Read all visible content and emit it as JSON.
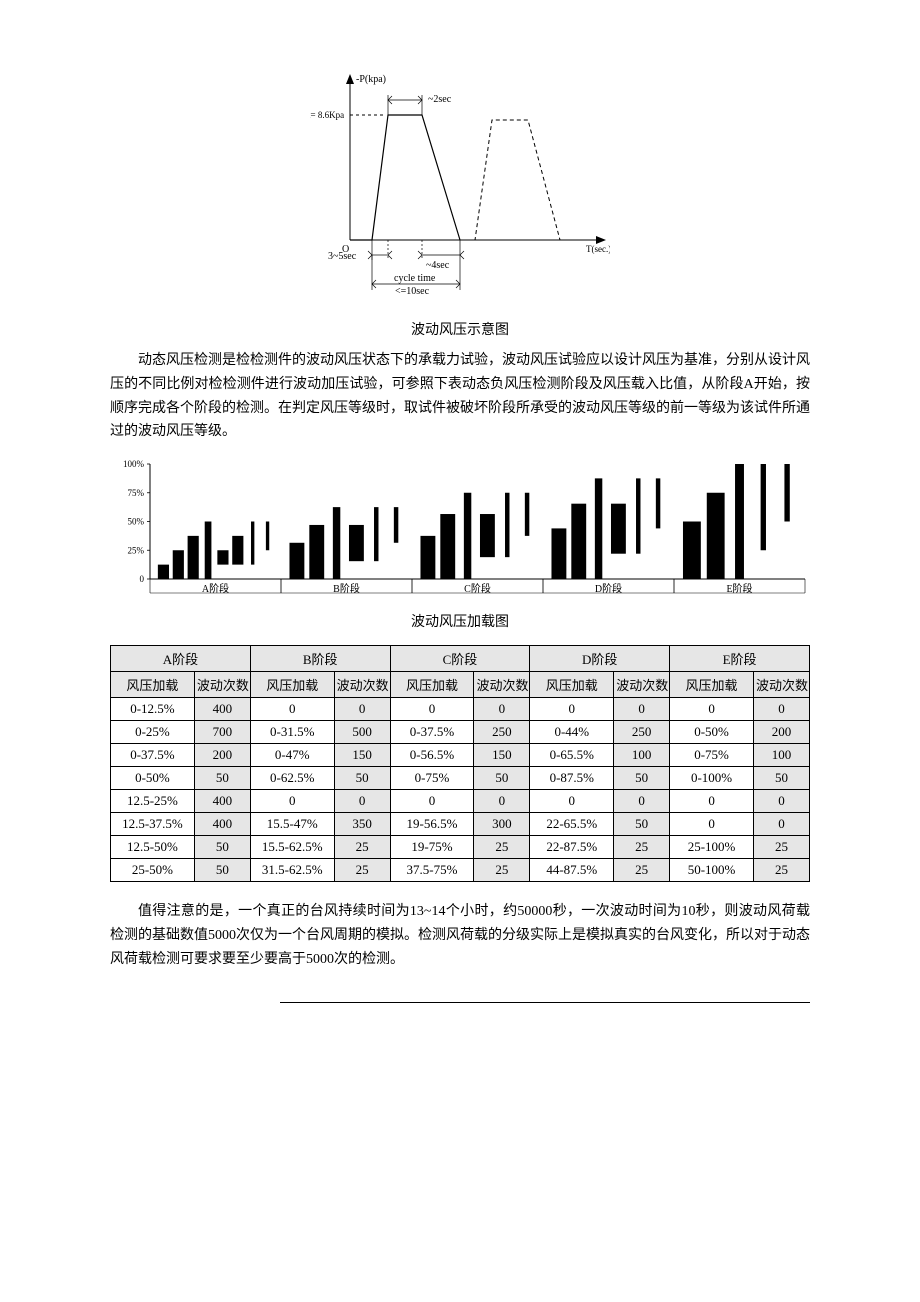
{
  "diagram1": {
    "y_label": "-P(kpa)",
    "pmax_label": "Pmax= 8.6Kpa",
    "top_dur": "~2sec",
    "rise": "3~5sec",
    "fall": "~4sec",
    "cycle_label1": "cycle time",
    "cycle_label2": "<=10sec",
    "x_label": "T(sec.)",
    "origin": "O",
    "caption": "波动风压示意图",
    "colors": {
      "stroke": "#000000",
      "bg": "#ffffff"
    }
  },
  "para1": "动态风压检测是检检测件的波动风压状态下的承载力试验，波动风压试验应以设计风压为基准，分别从设计风压的不同比例对检检测件进行波动加压试验，可参照下表动态负风压检测阶段及风压载入比值，从阶段A开始，按顺序完成各个阶段的检测。在判定风压等级时，取试件被破坏阶段所承受的波动风压等级的前一等级为该试件所通过的波动风压等级。",
  "chart": {
    "caption": "波动风压加载图",
    "y_ticks": [
      "0",
      "25%",
      "50%",
      "75%",
      "100%"
    ],
    "stages": [
      "A阶段",
      "B阶段",
      "C阶段",
      "D阶段",
      "E阶段"
    ],
    "colors": {
      "bar": "#000000",
      "axis": "#000000",
      "tick_line": "#999999"
    },
    "stage_data": {
      "A": [
        [
          0,
          12.5,
          1
        ],
        [
          0,
          25,
          1
        ],
        [
          0,
          37.5,
          1
        ],
        [
          0,
          50,
          0.6
        ],
        [
          12.5,
          25,
          1
        ],
        [
          12.5,
          37.5,
          1
        ],
        [
          12.5,
          50,
          0.3
        ],
        [
          25,
          50,
          0.3
        ]
      ],
      "B": [
        [
          0,
          31.5,
          1
        ],
        [
          0,
          47,
          1
        ],
        [
          0,
          62.5,
          0.5
        ],
        [
          15.5,
          47,
          1
        ],
        [
          15.5,
          62.5,
          0.3
        ],
        [
          31.5,
          62.5,
          0.3
        ]
      ],
      "C": [
        [
          0,
          37.5,
          1
        ],
        [
          0,
          56.5,
          1
        ],
        [
          0,
          75,
          0.5
        ],
        [
          19,
          56.5,
          1
        ],
        [
          19,
          75,
          0.3
        ],
        [
          37.5,
          75,
          0.3
        ]
      ],
      "D": [
        [
          0,
          44,
          1
        ],
        [
          0,
          65.5,
          1
        ],
        [
          0,
          87.5,
          0.5
        ],
        [
          22,
          65.5,
          1
        ],
        [
          22,
          87.5,
          0.3
        ],
        [
          44,
          87.5,
          0.3
        ]
      ],
      "E": [
        [
          0,
          50,
          1
        ],
        [
          0,
          75,
          1
        ],
        [
          0,
          100,
          0.5
        ],
        [
          25,
          100,
          0.3
        ],
        [
          50,
          100,
          0.3
        ]
      ]
    }
  },
  "table": {
    "stages": [
      "A阶段",
      "B阶段",
      "C阶段",
      "D阶段",
      "E阶段"
    ],
    "sub_headers": {
      "load": "风压加载",
      "count": "波动次数"
    },
    "rows": [
      [
        [
          "0-12.5%",
          "400"
        ],
        [
          "0",
          "0"
        ],
        [
          "0",
          "0"
        ],
        [
          "0",
          "0"
        ],
        [
          "0",
          "0"
        ]
      ],
      [
        [
          "0-25%",
          "700"
        ],
        [
          "0-31.5%",
          "500"
        ],
        [
          "0-37.5%",
          "250"
        ],
        [
          "0-44%",
          "250"
        ],
        [
          "0-50%",
          "200"
        ]
      ],
      [
        [
          "0-37.5%",
          "200"
        ],
        [
          "0-47%",
          "150"
        ],
        [
          "0-56.5%",
          "150"
        ],
        [
          "0-65.5%",
          "100"
        ],
        [
          "0-75%",
          "100"
        ]
      ],
      [
        [
          "0-50%",
          "50"
        ],
        [
          "0-62.5%",
          "50"
        ],
        [
          "0-75%",
          "50"
        ],
        [
          "0-87.5%",
          "50"
        ],
        [
          "0-100%",
          "50"
        ]
      ],
      [
        [
          "12.5-25%",
          "400"
        ],
        [
          "0",
          "0"
        ],
        [
          "0",
          "0"
        ],
        [
          "0",
          "0"
        ],
        [
          "0",
          "0"
        ]
      ],
      [
        [
          "12.5-37.5%",
          "400"
        ],
        [
          "15.5-47%",
          "350"
        ],
        [
          "19-56.5%",
          "300"
        ],
        [
          "22-65.5%",
          "50"
        ],
        [
          "0",
          "0"
        ]
      ],
      [
        [
          "12.5-50%",
          "50"
        ],
        [
          "15.5-62.5%",
          "25"
        ],
        [
          "19-75%",
          "25"
        ],
        [
          "22-87.5%",
          "25"
        ],
        [
          "25-100%",
          "25"
        ]
      ],
      [
        [
          "25-50%",
          "50"
        ],
        [
          "31.5-62.5%",
          "25"
        ],
        [
          "37.5-75%",
          "25"
        ],
        [
          "44-87.5%",
          "25"
        ],
        [
          "50-100%",
          "25"
        ]
      ]
    ]
  },
  "para2": "值得注意的是，一个真正的台风持续时间为13~14个小时，约50000秒，一次波动时间为10秒，则波动风荷载检测的基础数值5000次仅为一个台风周期的模拟。检测风荷载的分级实际上是模拟真实的台风变化，所以对于动态风荷载检测可要求要至少要高于5000次的检测。"
}
